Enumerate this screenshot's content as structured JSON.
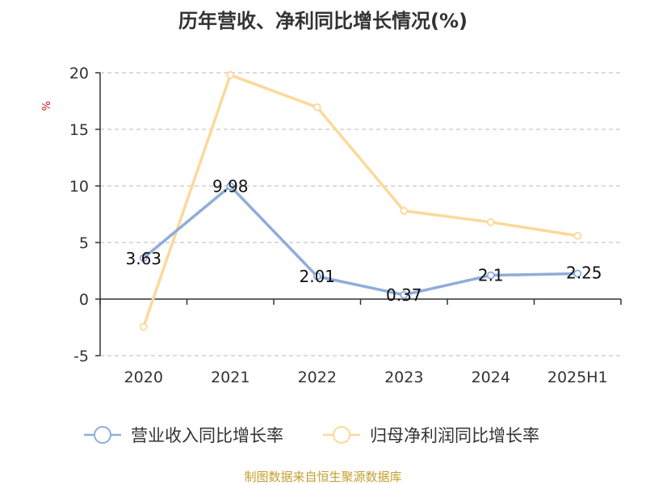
{
  "chart_data": {
    "type": "line",
    "title": "历年营收、净利同比增长情况(%)",
    "ylabel": "%",
    "categories": [
      "2020",
      "2021",
      "2022",
      "2023",
      "2024",
      "2025H1"
    ],
    "ylim": [
      -5,
      20
    ],
    "yticks": [
      -5,
      0,
      5,
      10,
      15,
      20
    ],
    "grid": true,
    "legend_position": "bottom",
    "series": [
      {
        "name": "营业收入同比增长率",
        "color": "#8eadd9",
        "values": [
          3.63,
          9.98,
          2.01,
          0.37,
          2.1,
          2.25
        ],
        "data_labels": [
          "3.63",
          "9.98",
          "2.01",
          "0.37",
          "2.1",
          "2.25"
        ]
      },
      {
        "name": "归母净利润同比增长率",
        "color": "#fbd99a",
        "values": [
          -2.45,
          19.8,
          16.95,
          7.8,
          6.8,
          5.6
        ],
        "data_labels": []
      }
    ]
  },
  "footer": {
    "source": "制图数据来自恒生聚源数据库"
  }
}
